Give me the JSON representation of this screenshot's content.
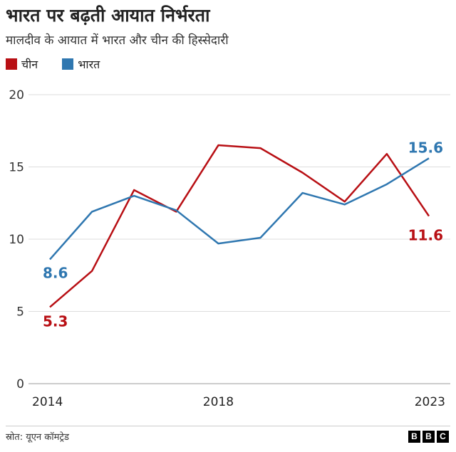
{
  "header": {
    "title": "भारत पर बढ़ती आयात निर्भरता",
    "subtitle": "मालदीव के आयात में भारत और चीन की हिस्सेदारी"
  },
  "legend": [
    {
      "label": "चीन",
      "color": "#b80f14"
    },
    {
      "label": "भारत",
      "color": "#2f77b0"
    }
  ],
  "chart_data": {
    "type": "line",
    "x": [
      2014,
      2015,
      2016,
      2017,
      2018,
      2019,
      2020,
      2021,
      2022,
      2023
    ],
    "x_tick_labels": [
      "2014",
      "2018",
      "2023"
    ],
    "y_ticks": [
      0,
      5,
      10,
      15,
      20
    ],
    "ylim": [
      0,
      20
    ],
    "grid": true,
    "series": [
      {
        "name": "चीन",
        "color": "#b80f14",
        "values": [
          5.3,
          7.8,
          13.4,
          11.9,
          16.5,
          16.3,
          14.6,
          12.6,
          15.9,
          11.6
        ],
        "start_label": "5.3",
        "end_label": "11.6"
      },
      {
        "name": "भारत",
        "color": "#2f77b0",
        "values": [
          8.6,
          11.9,
          13.0,
          12.0,
          9.7,
          10.1,
          13.2,
          12.4,
          13.8,
          15.6
        ],
        "start_label": "8.6",
        "end_label": "15.6"
      }
    ]
  },
  "footer": {
    "source": "स्रोत: यूएन कॉमट्रेड",
    "logo_letters": [
      "B",
      "B",
      "C"
    ]
  }
}
